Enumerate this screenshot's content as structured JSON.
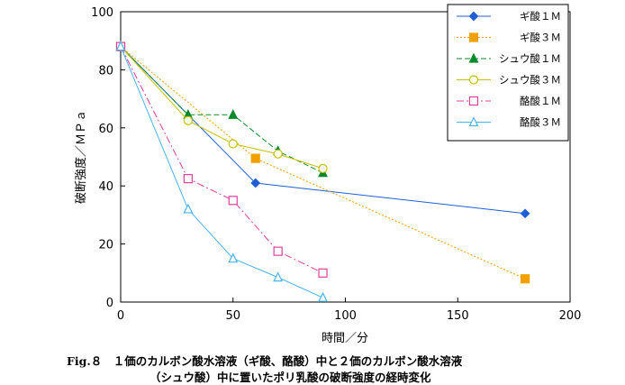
{
  "chart_data": {
    "type": "line",
    "xlabel": "時間／分",
    "ylabel": "破断強度／ＭＰａ",
    "xlim": [
      0,
      200
    ],
    "ylim": [
      0,
      100
    ],
    "xticks": [
      0,
      50,
      100,
      150,
      200
    ],
    "yticks": [
      0,
      20,
      40,
      60,
      80,
      100
    ],
    "grid": false,
    "legend_position": "top-right",
    "series": [
      {
        "name": "ギ酸１Ｍ",
        "color": "#1f5fd6",
        "marker": "filled-diamond",
        "line": "solid",
        "x": [
          0,
          60,
          180
        ],
        "y": [
          88,
          41,
          30.5
        ]
      },
      {
        "name": "ギ酸３Ｍ",
        "color": "#f0a000",
        "marker": "filled-square",
        "line": "dotted",
        "x": [
          0,
          60,
          180
        ],
        "y": [
          88,
          49.5,
          8
        ]
      },
      {
        "name": "シュウ酸１Ｍ",
        "color": "#0a8a2a",
        "marker": "filled-triangle",
        "line": "dashed",
        "x": [
          0,
          30,
          50,
          70,
          90
        ],
        "y": [
          88,
          64.5,
          64.5,
          52,
          44.5
        ]
      },
      {
        "name": "シュウ酸３Ｍ",
        "color": "#c8c000",
        "marker": "open-circle",
        "line": "solid",
        "x": [
          0,
          30,
          50,
          70,
          90
        ],
        "y": [
          88,
          62.5,
          54.5,
          51,
          46
        ]
      },
      {
        "name": "酪酸１Ｍ",
        "color": "#e0409a",
        "marker": "open-square",
        "line": "dash-dot",
        "x": [
          0,
          30,
          50,
          70,
          90
        ],
        "y": [
          88,
          42.5,
          35,
          17.5,
          10
        ]
      },
      {
        "name": "酪酸３Ｍ",
        "color": "#4ab4e8",
        "marker": "open-triangle",
        "line": "solid",
        "x": [
          0,
          30,
          50,
          70,
          90
        ],
        "y": [
          88,
          32,
          15,
          8.5,
          1.5
        ]
      }
    ]
  },
  "caption": {
    "line1": "Fig.８　１価のカルボン酸水溶液（ギ酸、酪酸）中と２価のカルボン酸水溶液",
    "line2": "（シュウ酸）中に置いたポリ乳酸の破断強度の経時変化"
  }
}
